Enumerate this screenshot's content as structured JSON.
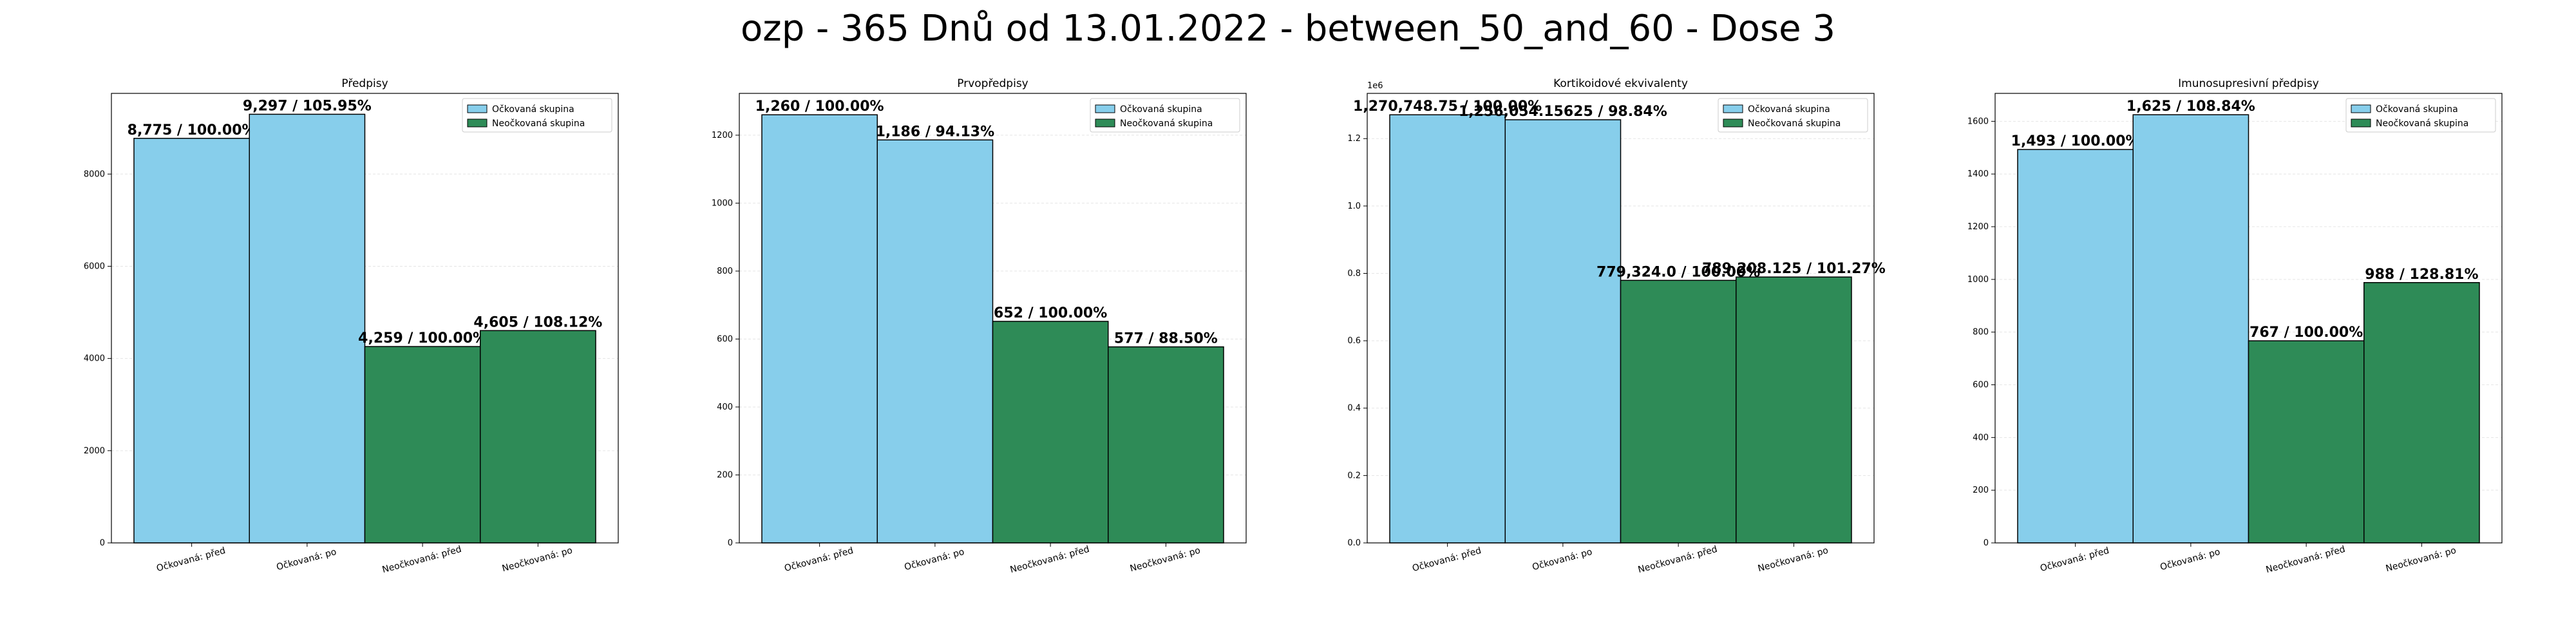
{
  "title": "ozp - 365 Dnů od 13.01.2022 - between_50_and_60 - Dose 3",
  "colors": {
    "vaccinated": "#87ceeb",
    "unvaccinated": "#2e8b57",
    "grid": "#e5e5e5"
  },
  "chart_data": [
    {
      "type": "bar",
      "title": "Předpisy",
      "categories": [
        "Očkovaná: před",
        "Očkovaná: po",
        "Neočkovaná: před",
        "Neočkovaná: po"
      ],
      "values": [
        8775,
        9297,
        4259,
        4605
      ],
      "data_labels": [
        "8,775 / 100.00%",
        "9,297 / 105.95%",
        "4,259 / 100.00%",
        "4,605 / 108.12%"
      ],
      "bar_series": [
        0,
        0,
        1,
        1
      ],
      "series": [
        {
          "name": "Očkovaná skupina"
        },
        {
          "name": "Neočkovaná skupina"
        }
      ],
      "ylim": [
        0,
        9750
      ],
      "yticks": [
        0,
        2000,
        4000,
        6000,
        8000
      ],
      "ytick_labels": [
        "0",
        "2000",
        "4000",
        "6000",
        "8000"
      ],
      "offset_text": "",
      "legend": "top-right",
      "grid": true
    },
    {
      "type": "bar",
      "title": "Prvopředpisy",
      "categories": [
        "Očkovaná: před",
        "Očkovaná: po",
        "Neočkovaná: před",
        "Neočkovaná: po"
      ],
      "values": [
        1260,
        1186,
        652,
        577
      ],
      "data_labels": [
        "1,260 / 100.00%",
        "1,186 / 94.13%",
        "652 / 100.00%",
        "577 / 88.50%"
      ],
      "bar_series": [
        0,
        0,
        1,
        1
      ],
      "series": [
        {
          "name": "Očkovaná skupina"
        },
        {
          "name": "Neočkovaná skupina"
        }
      ],
      "ylim": [
        0,
        1323
      ],
      "yticks": [
        0,
        200,
        400,
        600,
        800,
        1000,
        1200
      ],
      "ytick_labels": [
        "0",
        "200",
        "400",
        "600",
        "800",
        "1000",
        "1200"
      ],
      "offset_text": "",
      "legend": "top-right",
      "grid": true
    },
    {
      "type": "bar",
      "title": "Kortikoidové ekvivalenty",
      "categories": [
        "Očkovaná: před",
        "Očkovaná: po",
        "Neočkovaná: před",
        "Neočkovaná: po"
      ],
      "values": [
        1270748.75,
        1256054.15625,
        779324.0,
        789208.125
      ],
      "data_labels": [
        "1,270,748.75 / 100.00%",
        "1,256,054.15625 / 98.84%",
        "779,324.0 / 100.00%",
        "789,208.125 / 101.27%"
      ],
      "bar_series": [
        0,
        0,
        1,
        1
      ],
      "series": [
        {
          "name": "Očkovaná skupina"
        },
        {
          "name": "Neočkovaná skupina"
        }
      ],
      "ylim": [
        0,
        1334286
      ],
      "yticks": [
        0,
        200000,
        400000,
        600000,
        800000,
        1000000,
        1200000
      ],
      "ytick_labels": [
        "0.0",
        "0.2",
        "0.4",
        "0.6",
        "0.8",
        "1.0",
        "1.2"
      ],
      "offset_text": "1e6",
      "legend": "top-right",
      "grid": true
    },
    {
      "type": "bar",
      "title": "Imunosupresivní předpisy",
      "categories": [
        "Očkovaná: před",
        "Očkovaná: po",
        "Neočkovaná: před",
        "Neočkovaná: po"
      ],
      "values": [
        1493,
        1625,
        767,
        988
      ],
      "data_labels": [
        "1,493 / 100.00%",
        "1,625 / 108.84%",
        "767 / 100.00%",
        "988 / 128.81%"
      ],
      "bar_series": [
        0,
        0,
        1,
        1
      ],
      "series": [
        {
          "name": "Očkovaná skupina"
        },
        {
          "name": "Neočkovaná skupina"
        }
      ],
      "ylim": [
        0,
        1706
      ],
      "yticks": [
        0,
        200,
        400,
        600,
        800,
        1000,
        1200,
        1400,
        1600
      ],
      "ytick_labels": [
        "0",
        "200",
        "400",
        "600",
        "800",
        "1000",
        "1200",
        "1400",
        "1600"
      ],
      "offset_text": "",
      "legend": "top-right",
      "grid": true
    }
  ]
}
